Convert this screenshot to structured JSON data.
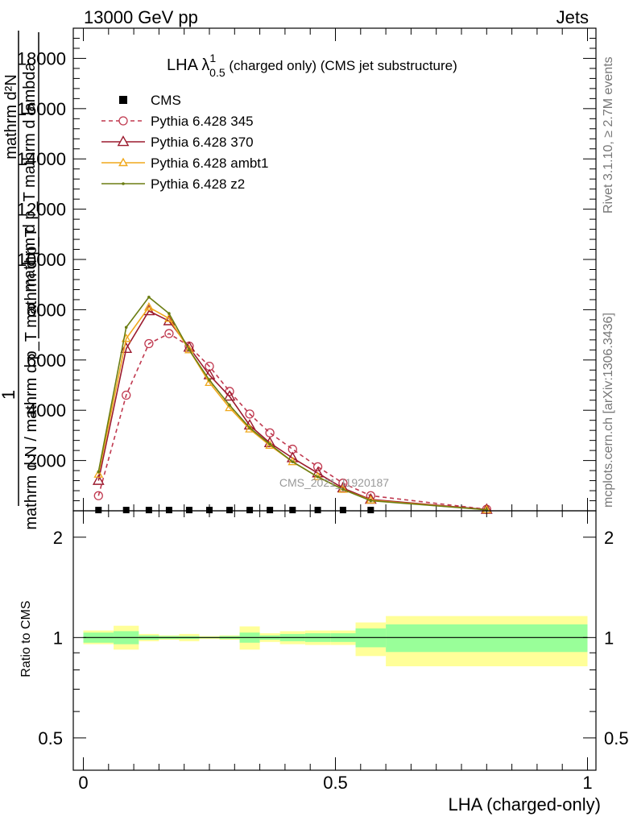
{
  "header": {
    "left": "13000 GeV pp",
    "right": "Jets"
  },
  "side": {
    "rivet": "Rivet 3.1.10, ≥ 2.7M events",
    "site": "mcplots.cern.ch [arXiv:1306.3436]"
  },
  "watermark": "CMS_2021_I1920187",
  "plot_title": {
    "prefix": "LHA λ",
    "sup": "1",
    "sub": "0.5",
    "rest": " (charged only) (CMS jet substructure)"
  },
  "ylabel_main": {
    "numerator": "mathrm d²N",
    "numerator_line2": "mathrm d p_T mathrm d lambda",
    "one": "1",
    "denominator": "mathrm d N / mathrm d p_T mathrm d p_T"
  },
  "ylabel_ratio": "Ratio to CMS",
  "xlabel": "LHA (charged-only)",
  "colors": {
    "p345": "#c0394f",
    "p370": "#9b1a2e",
    "ambt1": "#f0a81c",
    "z2": "#6b7d12",
    "band_inner": "#99ff99",
    "band_outer": "#ffff99"
  },
  "chart_data": [
    {
      "type": "line",
      "title": "LHA λ^1_0.5 (charged only) (CMS jet substructure)",
      "xlabel": "LHA (charged-only)",
      "ylabel": "1 / mathrm d N / mathrm d p_T mathrm d p_T · mathrm d²N / mathrm d p_T mathrm d lambda",
      "xlim": [
        0,
        1
      ],
      "ylim": [
        0,
        19200
      ],
      "yticks": [
        2000,
        4000,
        6000,
        8000,
        10000,
        12000,
        14000,
        16000,
        18000
      ],
      "ytick_labels": [
        "2000",
        "4000",
        "6000",
        "8000",
        "10000",
        "12000",
        "14000",
        "16000",
        "18000"
      ],
      "legend_position": "top-left",
      "series": [
        {
          "name": "CMS",
          "style": "points",
          "x": [
            0.03,
            0.085,
            0.13,
            0.17,
            0.21,
            0.25,
            0.29,
            0.33,
            0.37,
            0.415,
            0.465,
            0.515,
            0.57
          ],
          "values": [
            30,
            30,
            30,
            30,
            30,
            30,
            30,
            30,
            30,
            30,
            30,
            30,
            30
          ]
        },
        {
          "name": "Pythia 6.428 345",
          "style": "dashed-circle",
          "x": [
            0.03,
            0.085,
            0.13,
            0.17,
            0.21,
            0.25,
            0.29,
            0.33,
            0.37,
            0.415,
            0.465,
            0.515,
            0.57,
            0.8
          ],
          "values": [
            600,
            4600,
            6650,
            7050,
            6550,
            5750,
            4750,
            3850,
            3100,
            2450,
            1750,
            1100,
            600,
            60
          ]
        },
        {
          "name": "Pythia 6.428 370",
          "style": "triangle",
          "x": [
            0.03,
            0.085,
            0.13,
            0.17,
            0.21,
            0.25,
            0.29,
            0.33,
            0.37,
            0.415,
            0.465,
            0.515,
            0.57,
            0.8
          ],
          "values": [
            1200,
            6450,
            7950,
            7550,
            6500,
            5400,
            4550,
            3400,
            2700,
            2100,
            1500,
            900,
            450,
            50
          ]
        },
        {
          "name": "Pythia 6.428 ambt1",
          "style": "triangle",
          "x": [
            0.03,
            0.085,
            0.13,
            0.17,
            0.21,
            0.25,
            0.29,
            0.33,
            0.37,
            0.415,
            0.465,
            0.515,
            0.57,
            0.8
          ],
          "values": [
            1450,
            6850,
            8100,
            7650,
            6400,
            5100,
            4100,
            3250,
            2600,
            1950,
            1350,
            850,
            420,
            40
          ]
        },
        {
          "name": "Pythia 6.428 z2",
          "style": "small-dot",
          "x": [
            0.03,
            0.085,
            0.13,
            0.17,
            0.21,
            0.25,
            0.29,
            0.33,
            0.37,
            0.415,
            0.465,
            0.515,
            0.57,
            0.8
          ],
          "values": [
            1550,
            7300,
            8500,
            7850,
            6400,
            5200,
            4200,
            3300,
            2650,
            1950,
            1350,
            850,
            400,
            40
          ]
        }
      ]
    },
    {
      "type": "area",
      "title": "",
      "xlabel": "LHA (charged-only)",
      "ylabel": "Ratio to CMS",
      "xlim": [
        0,
        1
      ],
      "ylim": [
        0.4,
        2.4
      ],
      "yscale": "log",
      "yticks": [
        0.5,
        1,
        2
      ],
      "ytick_labels": [
        "0.5",
        "1",
        "2"
      ],
      "xticks": [
        0,
        0.5,
        1
      ],
      "xtick_labels": [
        "0",
        "0.5",
        "1"
      ],
      "bin_edges": [
        0,
        0.06,
        0.11,
        0.15,
        0.19,
        0.23,
        0.27,
        0.31,
        0.35,
        0.39,
        0.44,
        0.49,
        0.54,
        0.6,
        1.0
      ],
      "band_inner": [
        [
          0.965,
          1.035
        ],
        [
          0.955,
          1.045
        ],
        [
          0.985,
          1.015
        ],
        [
          0.99,
          1.01
        ],
        [
          0.99,
          1.01
        ],
        [
          0.995,
          1.005
        ],
        [
          0.99,
          1.01
        ],
        [
          0.965,
          1.035
        ],
        [
          0.985,
          1.015
        ],
        [
          0.975,
          1.025
        ],
        [
          0.97,
          1.03
        ],
        [
          0.97,
          1.03
        ],
        [
          0.935,
          1.065
        ],
        [
          0.905,
          1.095
        ]
      ],
      "band_outer": [
        [
          0.955,
          1.05
        ],
        [
          0.92,
          1.085
        ],
        [
          0.975,
          1.025
        ],
        [
          0.985,
          1.015
        ],
        [
          0.975,
          1.025
        ],
        [
          0.99,
          1.01
        ],
        [
          0.985,
          1.015
        ],
        [
          0.92,
          1.08
        ],
        [
          0.97,
          1.03
        ],
        [
          0.955,
          1.045
        ],
        [
          0.95,
          1.05
        ],
        [
          0.95,
          1.05
        ],
        [
          0.88,
          1.11
        ],
        [
          0.82,
          1.16
        ]
      ],
      "reference": 1
    }
  ]
}
